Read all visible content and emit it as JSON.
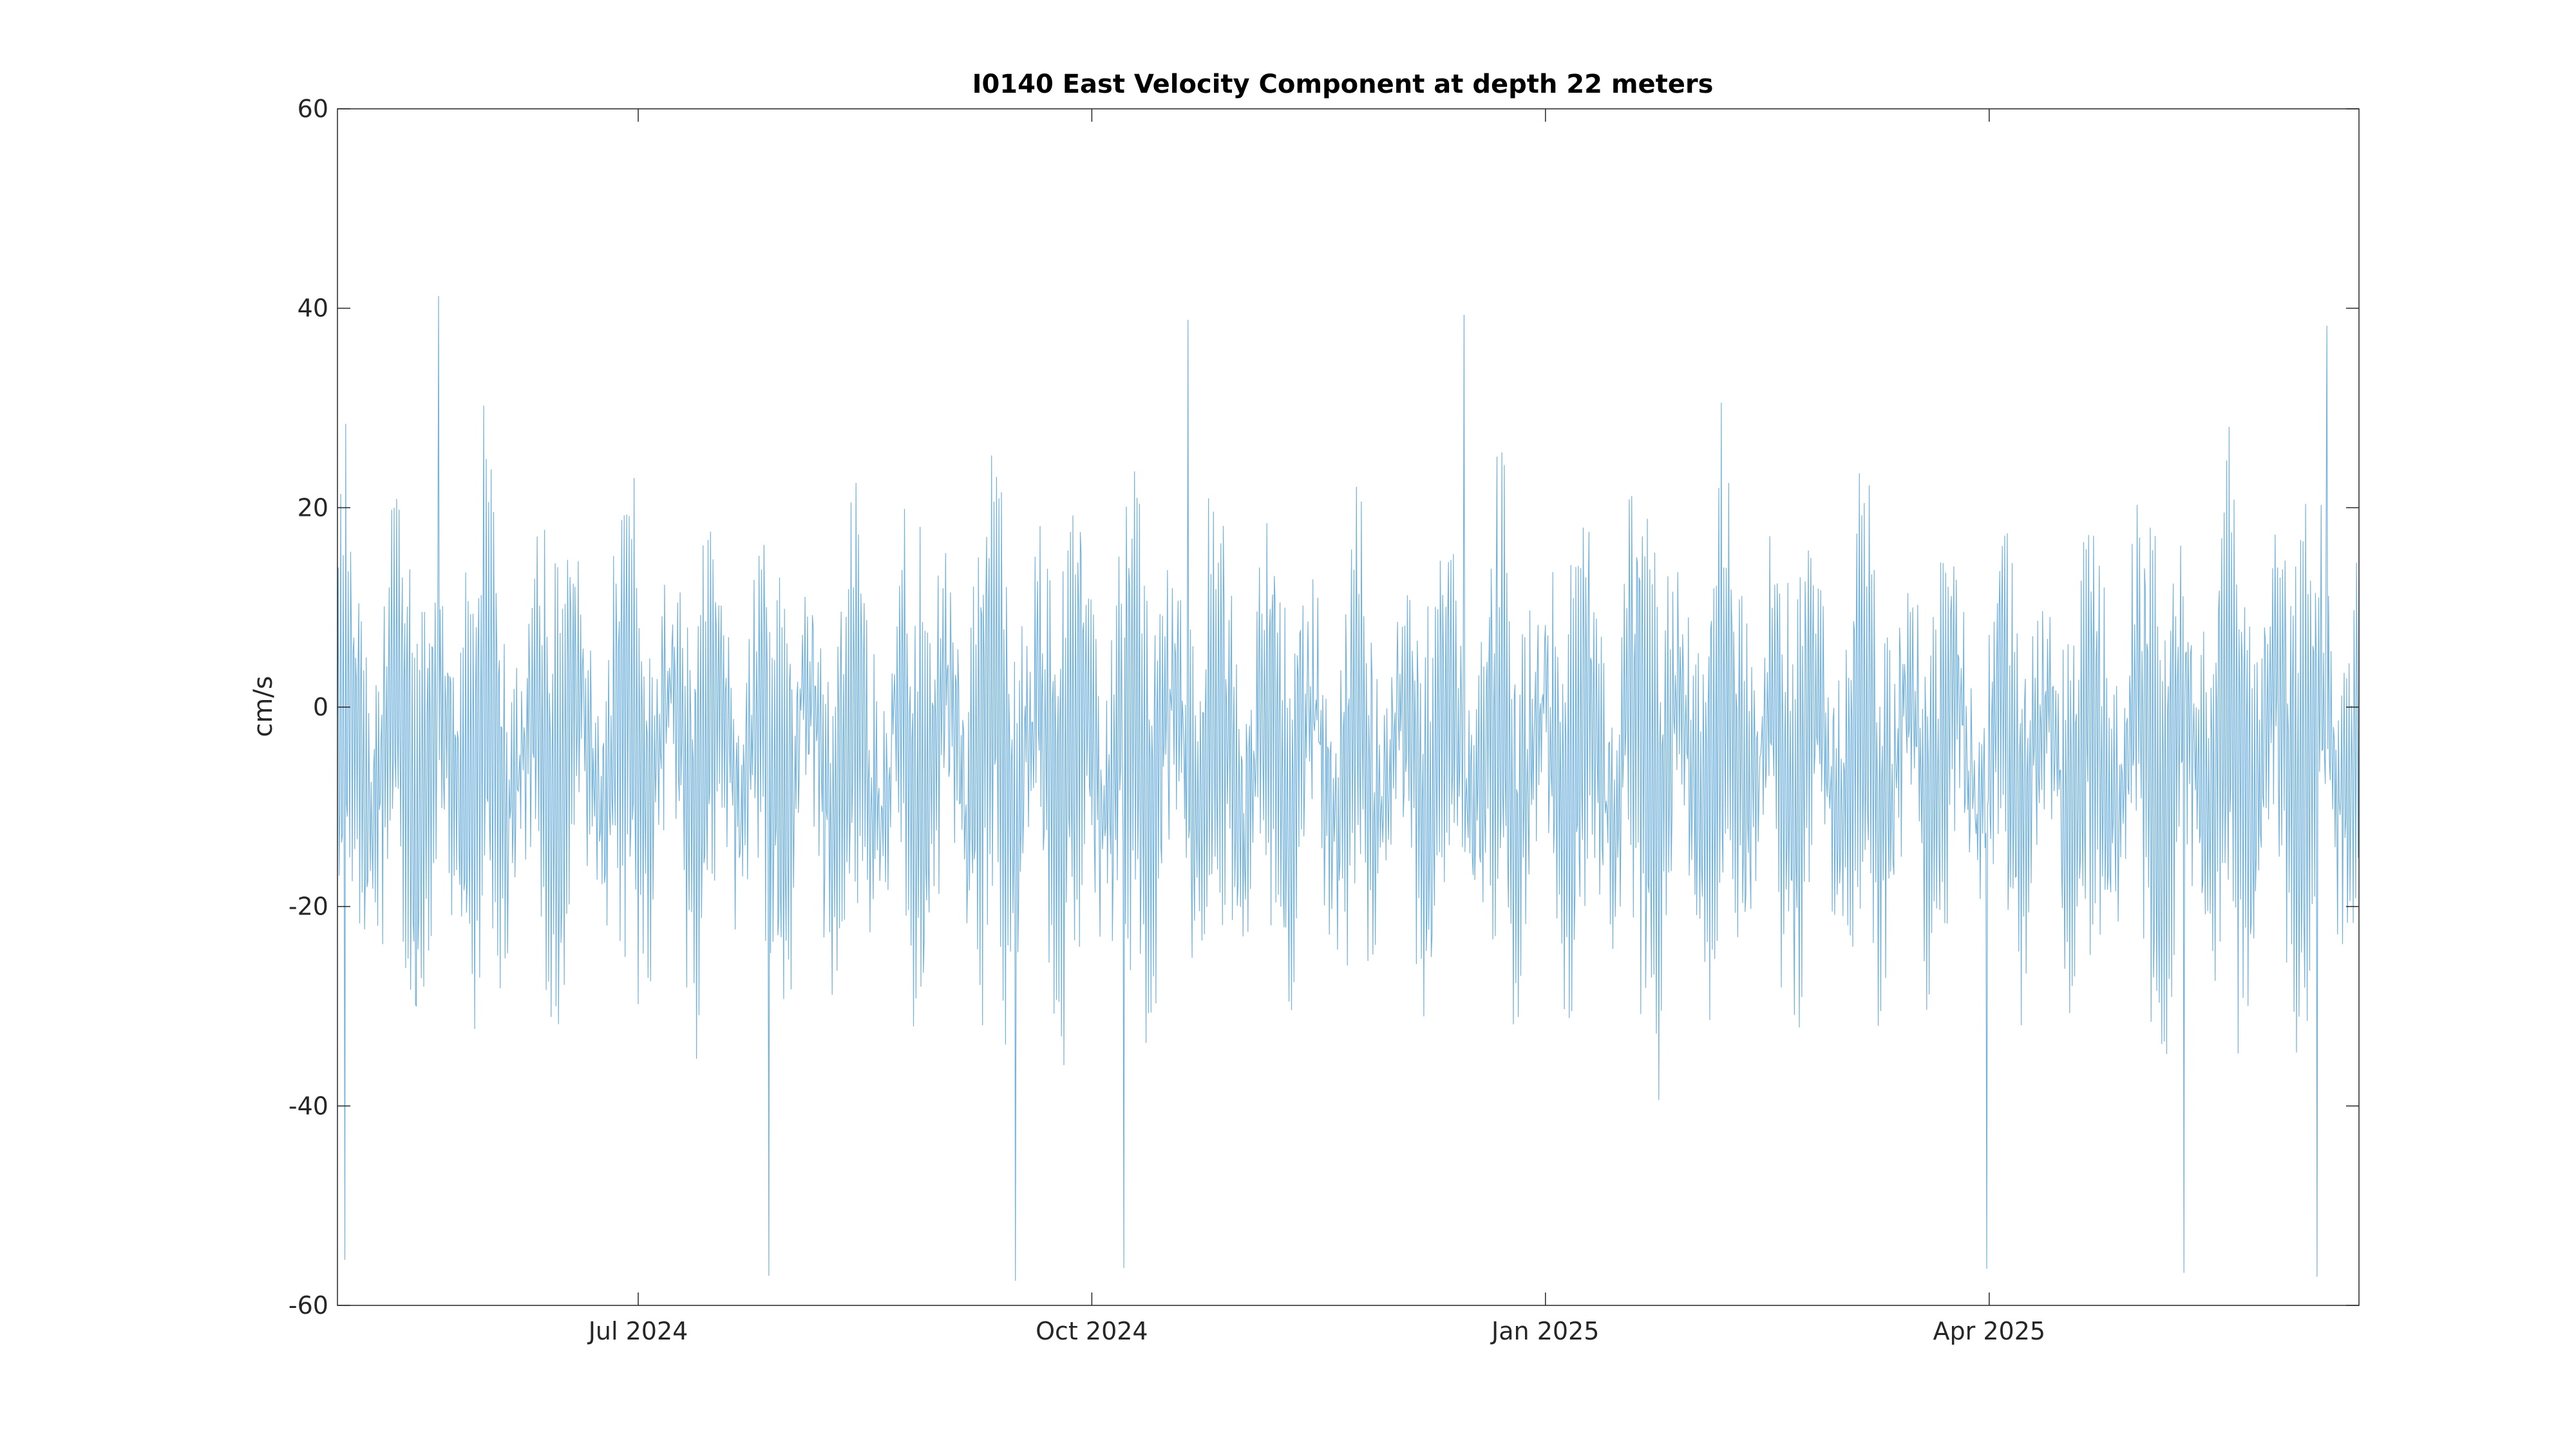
{
  "chart_data": {
    "type": "line",
    "title": "I0140 East Velocity Component at depth 22 meters",
    "xlabel": "",
    "ylabel": "cm/s",
    "x_range": [
      "2024-05-01",
      "2025-06-15"
    ],
    "ylim": [
      -60,
      60
    ],
    "y_ticks": [
      -60,
      -40,
      -20,
      0,
      20,
      40,
      60
    ],
    "y_tick_labels": [
      "-60",
      "-40",
      "-20",
      "0",
      "20",
      "40",
      "60"
    ],
    "x_ticks": [
      "2024-07-01",
      "2024-10-01",
      "2025-01-01",
      "2025-04-01"
    ],
    "x_tick_labels": [
      "Jul 2024",
      "Oct 2024",
      "Jan 2025",
      "Apr 2025"
    ],
    "grid": false,
    "box": true,
    "series": [
      {
        "color": "#0072BD",
        "sampling": "hourly",
        "envelope_description": "dense oscillating tidal signal, mean about -5 cm/s, range roughly -57 to 41 cm/s",
        "peaks": [
          {
            "x": "2024-05-21",
            "y": 41.2
          },
          {
            "x": "2024-10-20",
            "y": 38.8
          },
          {
            "x": "2024-12-15",
            "y": 39.3
          },
          {
            "x": "2025-06-08",
            "y": 38.2
          }
        ],
        "troughs": [
          {
            "x": "2024-05-02",
            "y": -55.4
          },
          {
            "x": "2024-07-27",
            "y": -57.0
          },
          {
            "x": "2024-09-15",
            "y": -57.5
          },
          {
            "x": "2024-10-07",
            "y": -56.2
          },
          {
            "x": "2025-03-31",
            "y": -56.3
          },
          {
            "x": "2025-05-10",
            "y": -56.7
          },
          {
            "x": "2025-06-06",
            "y": -57.1
          }
        ]
      }
    ]
  }
}
